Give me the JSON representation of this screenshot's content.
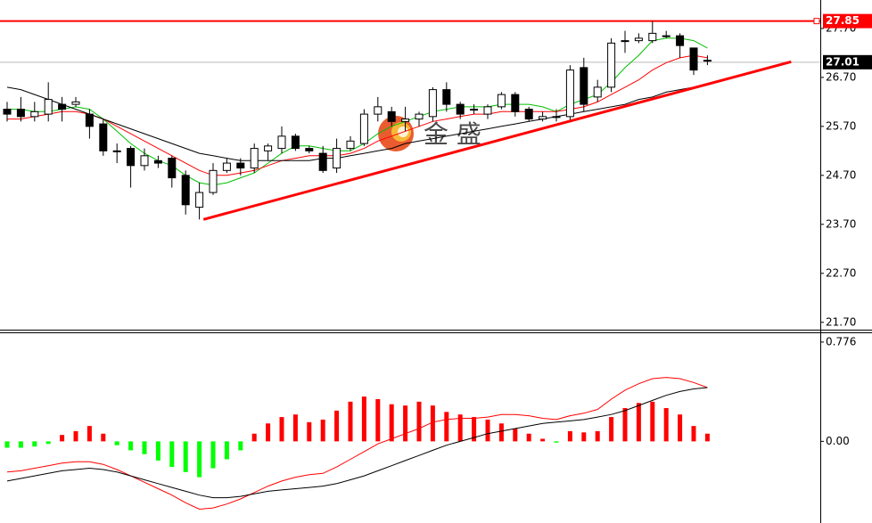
{
  "chart_data": [
    {
      "type": "candlestick",
      "open": [
        26.05,
        26.05,
        25.9,
        25.95,
        26.15,
        26.15,
        25.95,
        25.75,
        25.2,
        25.25,
        24.9,
        25.0,
        25.05,
        24.7,
        24.05,
        24.35,
        24.8,
        24.95,
        24.85,
        25.2,
        25.25,
        25.5,
        25.25,
        25.15,
        24.85,
        25.25,
        25.35,
        25.95,
        26.0,
        25.8,
        25.85,
        25.9,
        26.45,
        26.15,
        26.05,
        25.95,
        26.1,
        26.35,
        26.05,
        25.85,
        25.9,
        25.9,
        26.9,
        26.3,
        26.5,
        27.45,
        27.45,
        27.45,
        27.55,
        27.55,
        27.3,
        27.05
      ],
      "high": [
        26.2,
        26.3,
        26.2,
        26.6,
        26.3,
        26.3,
        26.05,
        25.85,
        25.35,
        25.3,
        25.25,
        25.1,
        25.1,
        24.8,
        24.55,
        24.95,
        25.05,
        25.05,
        25.35,
        25.35,
        25.7,
        25.55,
        25.3,
        25.3,
        25.45,
        25.5,
        26.05,
        26.3,
        26.1,
        26.1,
        26.0,
        26.5,
        26.6,
        26.2,
        26.15,
        26.15,
        26.4,
        26.4,
        26.1,
        26.0,
        26.05,
        26.95,
        27.1,
        26.65,
        27.5,
        27.65,
        27.6,
        27.85,
        27.65,
        27.6,
        27.3,
        27.15
      ],
      "low": [
        25.8,
        25.8,
        25.8,
        25.8,
        25.8,
        26.1,
        25.45,
        25.1,
        24.95,
        24.45,
        24.8,
        24.85,
        24.45,
        23.9,
        23.8,
        24.3,
        24.75,
        24.7,
        24.75,
        25.0,
        25.15,
        25.2,
        25.15,
        24.75,
        24.75,
        25.2,
        25.3,
        25.8,
        25.7,
        25.6,
        25.7,
        25.8,
        26.0,
        25.85,
        25.95,
        25.85,
        26.05,
        25.9,
        25.8,
        25.8,
        25.8,
        25.8,
        26.0,
        26.2,
        26.4,
        27.2,
        27.4,
        27.4,
        27.5,
        27.1,
        26.75,
        26.95
      ],
      "close": [
        25.95,
        25.9,
        26.0,
        26.25,
        26.05,
        26.2,
        25.7,
        25.2,
        25.2,
        24.9,
        25.1,
        24.95,
        24.65,
        24.1,
        24.35,
        24.8,
        24.95,
        24.85,
        25.25,
        25.3,
        25.5,
        25.25,
        25.2,
        24.8,
        25.25,
        25.4,
        25.95,
        26.1,
        25.8,
        25.85,
        25.95,
        26.45,
        26.15,
        25.95,
        26.05,
        26.1,
        26.35,
        26.0,
        25.85,
        25.9,
        25.9,
        26.85,
        26.15,
        26.5,
        27.4,
        27.45,
        27.5,
        27.6,
        27.55,
        27.35,
        26.85,
        27.05
      ],
      "up_color": "#ffffff",
      "down_color": "#000000",
      "lines": [
        {
          "color": "#00c000",
          "values": [
            26.05,
            26.05,
            26.0,
            26.0,
            26.05,
            26.1,
            26.05,
            25.85,
            25.6,
            25.35,
            25.15,
            25.0,
            24.9,
            24.7,
            24.55,
            24.5,
            24.55,
            24.65,
            24.75,
            24.95,
            25.15,
            25.3,
            25.3,
            25.25,
            25.2,
            25.2,
            25.35,
            25.55,
            25.7,
            25.8,
            25.9,
            26.0,
            26.05,
            26.1,
            26.1,
            26.1,
            26.15,
            26.15,
            26.15,
            26.1,
            26.0,
            26.15,
            26.25,
            26.35,
            26.6,
            26.9,
            27.15,
            27.45,
            27.5,
            27.5,
            27.45,
            27.3
          ]
        },
        {
          "color": "#ff0000",
          "values": [
            25.85,
            25.85,
            25.9,
            25.95,
            26.0,
            26.0,
            25.95,
            25.85,
            25.7,
            25.55,
            25.4,
            25.25,
            25.1,
            24.95,
            24.8,
            24.7,
            24.7,
            24.75,
            24.8,
            24.9,
            25.0,
            25.05,
            25.1,
            25.1,
            25.1,
            25.15,
            25.25,
            25.4,
            25.5,
            25.6,
            25.7,
            25.8,
            25.85,
            25.9,
            25.95,
            25.95,
            26.0,
            26.0,
            26.0,
            26.0,
            26.0,
            26.05,
            26.1,
            26.2,
            26.35,
            26.5,
            26.65,
            26.85,
            27.0,
            27.1,
            27.15,
            27.1
          ]
        },
        {
          "color": "#000000",
          "values": [
            26.5,
            26.45,
            26.35,
            26.25,
            26.15,
            26.05,
            25.95,
            25.85,
            25.75,
            25.65,
            25.55,
            25.45,
            25.35,
            25.25,
            25.15,
            25.1,
            25.05,
            25.0,
            25.0,
            25.0,
            25.0,
            25.0,
            25.0,
            25.05,
            25.05,
            25.1,
            25.15,
            25.2,
            25.25,
            25.35,
            25.4,
            25.45,
            25.5,
            25.55,
            25.6,
            25.65,
            25.7,
            25.75,
            25.8,
            25.85,
            25.9,
            25.95,
            26.0,
            26.05,
            26.1,
            26.15,
            26.25,
            26.3,
            26.4,
            26.45,
            26.5,
            26.55
          ]
        }
      ],
      "hlines": [
        {
          "value": 27.85,
          "color": "#ff0000"
        },
        {
          "value": 27.01,
          "color": "#000000"
        }
      ],
      "trendline": {
        "x": [
          14.3,
          57.1
        ],
        "values": [
          23.8,
          27.02
        ],
        "color": "#ff0000"
      },
      "watermark": "金 盛",
      "ylim": [
        21.55,
        28.28
      ],
      "yticks": [
        {
          "value": 27.7,
          "label": "27.70"
        },
        {
          "value": 26.7,
          "label": "26.70"
        },
        {
          "value": 25.7,
          "label": "25.70"
        },
        {
          "value": 24.7,
          "label": "24.70"
        },
        {
          "value": 23.7,
          "label": "23.70"
        },
        {
          "value": 22.7,
          "label": "22.70"
        },
        {
          "value": 21.7,
          "label": "21.70"
        }
      ]
    },
    {
      "type": "macd",
      "values": [
        -0.05,
        -0.05,
        -0.04,
        -0.02,
        0.05,
        0.08,
        0.12,
        0.06,
        -0.03,
        -0.07,
        -0.1,
        -0.15,
        -0.2,
        -0.24,
        -0.28,
        -0.21,
        -0.14,
        -0.07,
        0.06,
        0.14,
        0.19,
        0.21,
        0.15,
        0.17,
        0.24,
        0.31,
        0.35,
        0.33,
        0.29,
        0.28,
        0.31,
        0.28,
        0.23,
        0.21,
        0.19,
        0.17,
        0.14,
        0.1,
        0.06,
        0.02,
        -0.01,
        0.08,
        0.07,
        0.08,
        0.19,
        0.26,
        0.3,
        0.31,
        0.26,
        0.21,
        0.12,
        0.06
      ],
      "up_color": "#ff0000",
      "down_color": "#00ff00",
      "lines": [
        {
          "color": "#ff0000",
          "values": [
            -0.24,
            -0.23,
            -0.21,
            -0.19,
            -0.17,
            -0.16,
            -0.16,
            -0.18,
            -0.22,
            -0.27,
            -0.32,
            -0.37,
            -0.42,
            -0.48,
            -0.53,
            -0.52,
            -0.49,
            -0.45,
            -0.4,
            -0.35,
            -0.31,
            -0.28,
            -0.26,
            -0.25,
            -0.2,
            -0.14,
            -0.08,
            -0.02,
            0.02,
            0.06,
            0.1,
            0.15,
            0.17,
            0.18,
            0.18,
            0.19,
            0.21,
            0.21,
            0.2,
            0.18,
            0.17,
            0.2,
            0.22,
            0.25,
            0.33,
            0.4,
            0.45,
            0.49,
            0.5,
            0.49,
            0.46,
            0.42
          ]
        },
        {
          "color": "#000000",
          "values": [
            -0.31,
            -0.29,
            -0.27,
            -0.25,
            -0.23,
            -0.22,
            -0.21,
            -0.22,
            -0.24,
            -0.27,
            -0.3,
            -0.33,
            -0.36,
            -0.39,
            -0.42,
            -0.44,
            -0.44,
            -0.43,
            -0.41,
            -0.39,
            -0.38,
            -0.37,
            -0.36,
            -0.35,
            -0.33,
            -0.3,
            -0.27,
            -0.23,
            -0.19,
            -0.15,
            -0.11,
            -0.07,
            -0.03,
            0.0,
            0.03,
            0.06,
            0.08,
            0.1,
            0.12,
            0.14,
            0.15,
            0.16,
            0.17,
            0.19,
            0.21,
            0.24,
            0.28,
            0.32,
            0.36,
            0.39,
            0.41,
            0.42
          ]
        }
      ],
      "ylim": [
        -0.638,
        0.845
      ],
      "yticks": [
        0.776,
        {
          "value": 0,
          "label": "0.00"
        }
      ]
    }
  ]
}
